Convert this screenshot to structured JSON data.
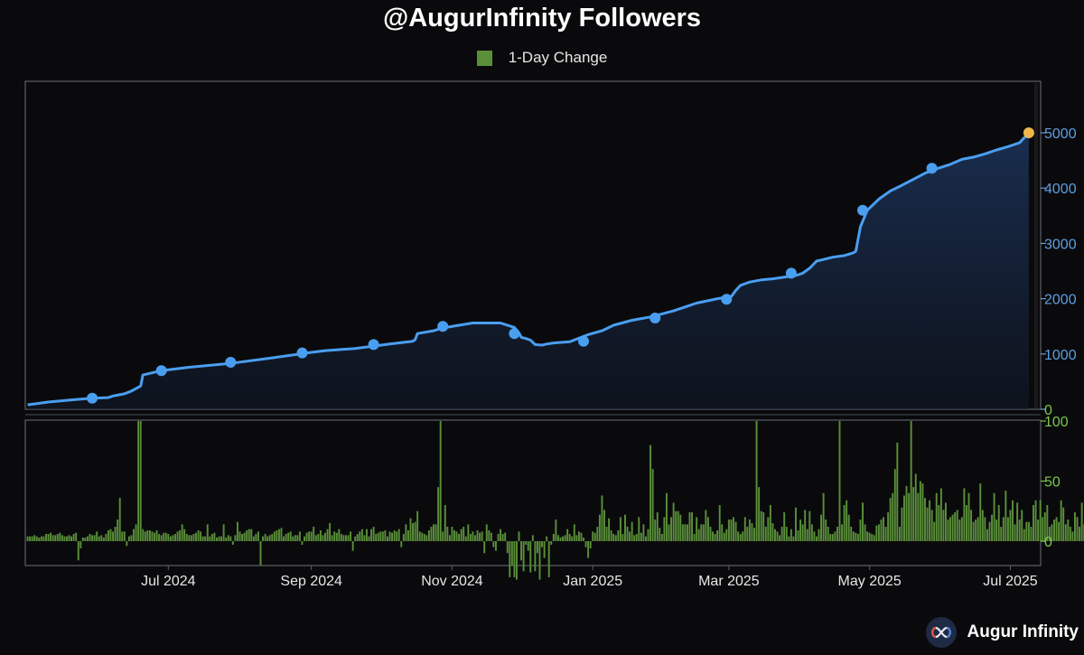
{
  "chart_title": "@AugurInfinity Followers",
  "brand": {
    "name": "Augur Infinity",
    "logo_icon": "infinity-logo-icon"
  },
  "colors": {
    "background": "#0a0a0c",
    "line": "#4a9ef0",
    "marker": "#4a9ef0",
    "last_marker": "#f0b84a",
    "bars": "#5a8f3a",
    "bars_highlight": "#7ac94a",
    "right_axis_top": "#5f9fe0",
    "right_axis_bottom": "#7ac94a",
    "frame": "#5a6066"
  },
  "chart_data": [
    {
      "type": "area",
      "series": [
        {
          "name": "Followers",
          "x": [
            "2024-05-01",
            "2024-05-10",
            "2024-05-20",
            "2024-05-29",
            "2024-06-05",
            "2024-06-07",
            "2024-06-12",
            "2024-06-15",
            "2024-06-19",
            "2024-06-20",
            "2024-06-28",
            "2024-07-10",
            "2024-07-28",
            "2024-08-15",
            "2024-09-01",
            "2024-09-07",
            "2024-09-20",
            "2024-10-05",
            "2024-10-15",
            "2024-10-16",
            "2024-10-17",
            "2024-10-24",
            "2024-10-28",
            "2024-11-04",
            "2024-11-10",
            "2024-11-22",
            "2024-11-28",
            "2024-11-30",
            "2024-12-01",
            "2024-12-03",
            "2024-12-05",
            "2024-12-07",
            "2024-12-10",
            "2024-12-12",
            "2024-12-15",
            "2024-12-22",
            "2024-12-30",
            "2025-01-05",
            "2025-01-10",
            "2025-01-18",
            "2025-01-22",
            "2025-01-26",
            "2025-02-05",
            "2025-02-15",
            "2025-02-24",
            "2025-03-02",
            "2025-03-04",
            "2025-03-06",
            "2025-03-10",
            "2025-03-15",
            "2025-03-20",
            "2025-03-30",
            "2025-04-02",
            "2025-04-05",
            "2025-04-08",
            "2025-04-10",
            "2025-04-15",
            "2025-04-20",
            "2025-04-24",
            "2025-04-25",
            "2025-04-27",
            "2025-04-30",
            "2025-05-05",
            "2025-05-10",
            "2025-05-15",
            "2025-05-20",
            "2025-05-25",
            "2025-05-30",
            "2025-06-05",
            "2025-06-10",
            "2025-06-15",
            "2025-06-20",
            "2025-06-25",
            "2025-06-30",
            "2025-07-05",
            "2025-07-09"
          ],
          "values": [
            80,
            130,
            170,
            200,
            210,
            240,
            280,
            330,
            420,
            620,
            700,
            760,
            830,
            930,
            1030,
            1060,
            1100,
            1180,
            1230,
            1260,
            1370,
            1420,
            1470,
            1520,
            1560,
            1560,
            1480,
            1380,
            1300,
            1280,
            1250,
            1170,
            1160,
            1180,
            1200,
            1220,
            1350,
            1420,
            1520,
            1610,
            1640,
            1670,
            1780,
            1920,
            2000,
            2040,
            2150,
            2240,
            2300,
            2340,
            2360,
            2420,
            2460,
            2550,
            2680,
            2700,
            2750,
            2780,
            2830,
            2860,
            3300,
            3600,
            3800,
            3950,
            4050,
            4160,
            4270,
            4350,
            4430,
            4520,
            4560,
            4620,
            4690,
            4750,
            4820,
            5000
          ]
        }
      ],
      "markers": {
        "x": [
          "2024-05-29",
          "2024-06-28",
          "2024-07-28",
          "2024-08-28",
          "2024-09-28",
          "2024-10-28",
          "2024-11-28",
          "2024-12-28",
          "2025-01-28",
          "2025-02-28",
          "2025-03-28",
          "2025-04-28",
          "2025-05-28",
          "2025-07-09"
        ],
        "values": [
          200,
          700,
          850,
          1020,
          1170,
          1500,
          1370,
          1230,
          1650,
          1990,
          2460,
          3600,
          4360,
          5000
        ]
      },
      "y_axis": {
        "position": "right",
        "ticks": [
          "0",
          "1000",
          "2000",
          "3000",
          "4000",
          "5000"
        ],
        "ylim": [
          0,
          5500
        ]
      },
      "x_axis": {
        "ticks": [
          "Jul 2024",
          "Sep 2024",
          "Nov 2024",
          "Jan 2025",
          "Mar 2025",
          "May 2025",
          "Jul 2025"
        ],
        "tick_dates": [
          "2024-07-01",
          "2024-09-01",
          "2024-11-01",
          "2025-01-01",
          "2025-03-01",
          "2025-05-01",
          "2025-07-01"
        ],
        "xlim": [
          "2024-04-30",
          "2025-07-11"
        ]
      },
      "grid": false
    },
    {
      "type": "bar",
      "series": [
        {
          "name": "1-Day Change",
          "x_start": "2024-05-01",
          "values": [
            4,
            4,
            4,
            5,
            4,
            3,
            4,
            4,
            6,
            6,
            7,
            5,
            5,
            6,
            7,
            5,
            4,
            4,
            5,
            4,
            6,
            7,
            -16,
            -6,
            3,
            3,
            4,
            6,
            5,
            5,
            8,
            4,
            5,
            3,
            6,
            9,
            10,
            8,
            12,
            18,
            36,
            8,
            8,
            -4,
            4,
            5,
            10,
            14,
            100,
            100,
            10,
            8,
            9,
            9,
            8,
            7,
            9,
            6,
            5,
            7,
            7,
            6,
            4,
            5,
            6,
            8,
            9,
            14,
            10,
            6,
            5,
            5,
            6,
            7,
            9,
            8,
            4,
            4,
            14,
            4,
            6,
            7,
            3,
            4,
            4,
            14,
            3,
            5,
            4,
            -3,
            5,
            16,
            8,
            6,
            7,
            9,
            10,
            10,
            4,
            6,
            8,
            -20,
            4,
            6,
            4,
            5,
            6,
            8,
            9,
            10,
            11,
            4,
            6,
            7,
            8,
            4,
            5,
            5,
            8,
            -3,
            4,
            7,
            8,
            8,
            12,
            5,
            6,
            9,
            5,
            7,
            10,
            15,
            5,
            8,
            7,
            10,
            6,
            5,
            5,
            5,
            8,
            -8,
            4,
            6,
            8,
            10,
            5,
            10,
            4,
            10,
            12,
            6,
            7,
            8,
            8,
            9,
            4,
            8,
            7,
            9,
            8,
            10,
            -5,
            6,
            14,
            9,
            19,
            15,
            16,
            25,
            8,
            7,
            6,
            5,
            9,
            12,
            14,
            14,
            45,
            100,
            8,
            30,
            12,
            5,
            12,
            9,
            8,
            6,
            10,
            12,
            4,
            14,
            6,
            8,
            5,
            9,
            7,
            8,
            -10,
            14,
            9,
            7,
            -5,
            -8,
            6,
            10,
            6,
            7,
            -10,
            -30,
            -20,
            -30,
            -32,
            8,
            -16,
            -25,
            -3,
            -8,
            -26,
            5,
            -25,
            -10,
            -32,
            -5,
            -14,
            4,
            -30,
            -3,
            6,
            18,
            5,
            3,
            4,
            5,
            10,
            6,
            4,
            14,
            5,
            8,
            7,
            3,
            -5,
            -14,
            -6,
            8,
            7,
            12,
            22,
            38,
            26,
            12,
            19,
            9,
            6,
            5,
            9,
            20,
            6,
            22,
            12,
            8,
            16,
            5,
            6,
            20,
            7,
            14,
            4,
            10,
            80,
            60,
            18,
            24,
            11,
            6,
            20,
            40,
            14,
            20,
            32,
            25,
            25,
            22,
            14,
            14,
            14,
            24,
            24,
            6,
            20,
            10,
            14,
            14,
            26,
            20,
            12,
            8,
            6,
            9,
            30,
            14,
            7,
            10,
            18,
            18,
            20,
            16,
            8,
            6,
            8,
            20,
            12,
            18,
            15,
            11,
            100,
            45,
            25,
            24,
            12,
            20,
            30,
            15,
            10,
            8,
            5,
            12,
            24,
            12,
            4,
            10,
            4,
            28,
            9,
            18,
            14,
            26,
            10,
            25,
            14,
            8,
            4,
            10,
            22,
            40,
            18,
            12,
            6,
            6,
            8,
            12,
            100,
            14,
            30,
            34,
            22,
            12,
            8,
            7,
            6,
            18,
            32,
            14,
            8,
            7,
            6,
            5,
            13,
            14,
            18,
            20,
            12,
            24,
            36,
            40,
            60,
            82,
            12,
            28,
            38,
            46,
            40,
            100,
            45,
            56,
            40,
            50,
            48,
            36,
            28,
            34,
            26,
            16,
            40,
            30,
            44,
            26,
            32,
            18,
            20,
            22,
            24,
            26,
            18,
            20,
            44,
            30,
            40,
            26,
            16,
            18,
            20,
            48,
            26,
            20,
            10,
            16,
            22,
            40,
            18,
            30,
            12,
            20,
            42,
            20,
            26,
            34,
            14,
            32,
            18,
            26,
            10,
            16,
            16,
            12,
            30,
            34,
            18,
            34,
            20,
            24,
            30,
            12,
            14,
            18,
            20,
            16,
            34,
            28,
            14,
            18,
            12,
            8,
            24,
            20,
            12,
            32,
            14,
            18,
            22,
            14,
            20,
            20,
            26,
            24,
            12,
            12,
            22,
            10,
            16,
            10,
            18,
            8,
            14,
            6,
            20,
            26,
            14,
            10,
            40,
            24,
            48,
            26,
            20,
            36,
            30,
            10,
            14,
            18,
            18,
            14,
            28,
            12,
            16,
            12,
            16,
            12,
            30,
            18,
            12,
            22,
            18,
            24,
            26,
            22,
            42,
            20,
            32,
            12,
            20,
            16,
            8,
            22,
            20,
            28,
            24,
            12,
            10,
            26,
            30,
            26,
            26,
            20,
            14,
            14,
            24,
            12,
            16,
            16,
            18,
            30,
            24,
            42,
            36,
            20,
            20,
            30,
            14,
            20,
            10,
            26,
            24,
            26,
            16,
            20,
            30,
            36,
            34,
            24,
            20,
            14,
            22,
            8,
            28,
            28,
            14,
            40,
            50,
            40,
            30,
            20,
            14,
            12,
            18
          ]
        }
      ],
      "y_axis": {
        "position": "right",
        "ticks": [
          "0",
          "50",
          "100"
        ],
        "ylim": [
          -40,
          100
        ]
      },
      "grid": false
    }
  ],
  "legend": {
    "label": "1-Day Change",
    "placement": "top-center"
  }
}
